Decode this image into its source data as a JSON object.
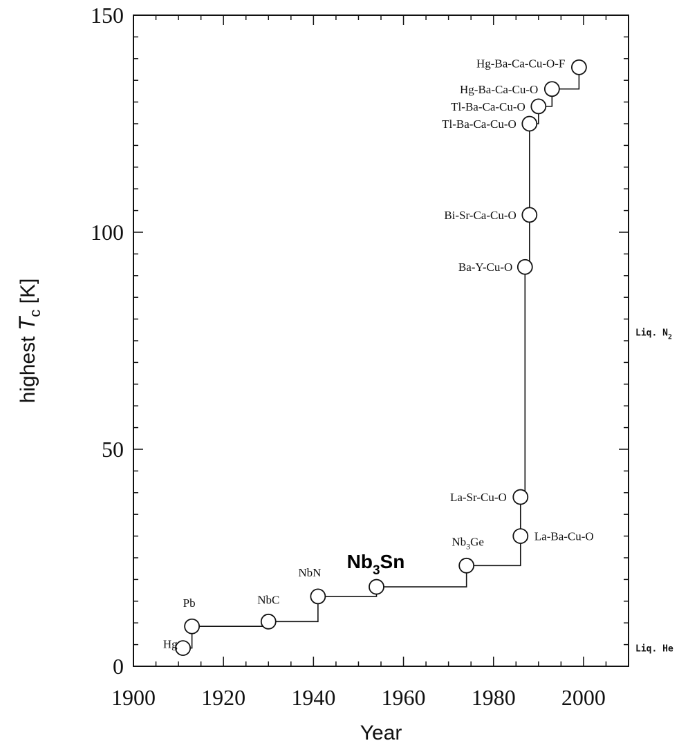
{
  "chart_data": {
    "type": "line",
    "title": "",
    "xlabel": "Year",
    "ylabel_prefix": "highest ",
    "ylabel_symbol": "T",
    "ylabel_sub": "c",
    "ylabel_unit": "  [K]",
    "xlim": [
      1900,
      2010
    ],
    "ylim": [
      0,
      150
    ],
    "xticks": [
      "1900",
      "1920",
      "1940",
      "1960",
      "1980",
      "2000"
    ],
    "yticks": [
      "0",
      "50",
      "100",
      "150"
    ],
    "grid": false,
    "step_line": true,
    "points": [
      {
        "x": 1911,
        "y": 4.2,
        "label": "Hg",
        "label_sub": "",
        "label_rest": "",
        "big": false
      },
      {
        "x": 1913,
        "y": 9.2,
        "label": "Pb",
        "label_sub": "",
        "label_rest": "",
        "big": false
      },
      {
        "x": 1930,
        "y": 10.3,
        "label": "NbC",
        "label_sub": "",
        "label_rest": "",
        "big": false
      },
      {
        "x": 1941,
        "y": 16.1,
        "label": "NbN",
        "label_sub": "",
        "label_rest": "",
        "big": false
      },
      {
        "x": 1954,
        "y": 18.3,
        "label": "Nb",
        "label_sub": "3",
        "label_rest": "Sn",
        "big": true
      },
      {
        "x": 1974,
        "y": 23.2,
        "label": "Nb",
        "label_sub": "3",
        "label_rest": "Ge",
        "big": false
      },
      {
        "x": 1986,
        "y": 30,
        "label": "La-Ba-Cu-O",
        "label_sub": "",
        "label_rest": "",
        "big": false
      },
      {
        "x": 1986,
        "y": 39,
        "label": "La-Sr-Cu-O",
        "label_sub": "",
        "label_rest": "",
        "big": false
      },
      {
        "x": 1987,
        "y": 92,
        "label": "Ba-Y-Cu-O",
        "label_sub": "",
        "label_rest": "",
        "big": false
      },
      {
        "x": 1988,
        "y": 104,
        "label": "Bi-Sr-Ca-Cu-O",
        "label_sub": "",
        "label_rest": "",
        "big": false
      },
      {
        "x": 1988,
        "y": 125,
        "label": "Tl-Ba-Ca-Cu-O",
        "label_sub": "",
        "label_rest": "",
        "big": false
      },
      {
        "x": 1990,
        "y": 129,
        "label": "Tl-Ba-Ca-Cu-O",
        "label_sub": "",
        "label_rest": "",
        "big": false
      },
      {
        "x": 1993,
        "y": 133,
        "label": "Hg-Ba-Ca-Cu-O",
        "label_sub": "",
        "label_rest": "",
        "big": false
      },
      {
        "x": 1999,
        "y": 138,
        "label": "Hg-Ba-Ca-Cu-O-F",
        "label_sub": "",
        "label_rest": "",
        "big": false
      }
    ],
    "reference_lines": [
      {
        "y": 77,
        "label": "Liq. N",
        "label_sub": "2"
      },
      {
        "y": 4.2,
        "label": "Liq. He",
        "label_sub": ""
      }
    ]
  }
}
